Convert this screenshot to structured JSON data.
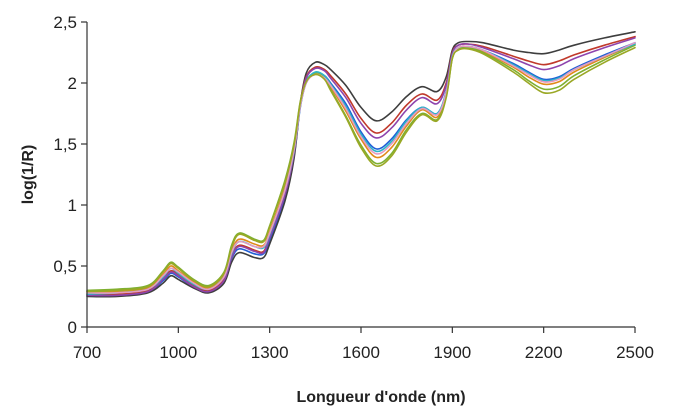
{
  "chart_data": {
    "type": "line",
    "title": "",
    "xlabel": "Longueur d'onde (nm)",
    "ylabel": "log(1/R)",
    "xlim": [
      700,
      2500
    ],
    "ylim": [
      0,
      2.5
    ],
    "x_ticks": [
      700,
      1000,
      1300,
      1600,
      1900,
      2200,
      2500
    ],
    "x_tick_labels": [
      "700",
      "1000",
      "1300",
      "1600",
      "1900",
      "2200",
      "2500"
    ],
    "y_ticks": [
      0,
      0.5,
      1,
      1.5,
      2,
      2.5
    ],
    "y_tick_labels": [
      "0",
      "0,5",
      "1",
      "1,5",
      "2",
      "2,5"
    ],
    "grid": false,
    "legend": "none",
    "x": [
      700,
      800,
      900,
      950,
      975,
      1000,
      1050,
      1100,
      1150,
      1175,
      1200,
      1250,
      1280,
      1300,
      1350,
      1380,
      1400,
      1420,
      1450,
      1480,
      1500,
      1550,
      1600,
      1650,
      1700,
      1750,
      1800,
      1850,
      1880,
      1900,
      1920,
      1950,
      2000,
      2100,
      2150,
      2200,
      2250,
      2300,
      2400,
      2500
    ],
    "series": [
      {
        "color": "#1f5fd6",
        "values": [
          0.26,
          0.26,
          0.29,
          0.38,
          0.44,
          0.41,
          0.33,
          0.29,
          0.38,
          0.56,
          0.64,
          0.6,
          0.6,
          0.71,
          1.06,
          1.4,
          1.79,
          2.0,
          2.08,
          2.06,
          2.0,
          1.83,
          1.6,
          1.46,
          1.54,
          1.7,
          1.8,
          1.75,
          1.93,
          2.21,
          2.29,
          2.3,
          2.27,
          2.16,
          2.09,
          2.03,
          2.05,
          2.12,
          2.23,
          2.33
        ]
      },
      {
        "color": "#3e3e3e",
        "values": [
          0.25,
          0.25,
          0.28,
          0.36,
          0.42,
          0.39,
          0.32,
          0.28,
          0.36,
          0.53,
          0.61,
          0.57,
          0.57,
          0.68,
          1.03,
          1.38,
          1.82,
          2.08,
          2.17,
          2.15,
          2.11,
          1.98,
          1.8,
          1.69,
          1.76,
          1.89,
          1.97,
          1.93,
          2.05,
          2.27,
          2.33,
          2.34,
          2.33,
          2.27,
          2.25,
          2.24,
          2.27,
          2.31,
          2.37,
          2.42
        ]
      },
      {
        "color": "#e08a1a",
        "values": [
          0.29,
          0.29,
          0.32,
          0.43,
          0.5,
          0.46,
          0.37,
          0.32,
          0.42,
          0.62,
          0.72,
          0.68,
          0.67,
          0.78,
          1.14,
          1.46,
          1.82,
          2.01,
          2.08,
          2.05,
          1.97,
          1.77,
          1.54,
          1.39,
          1.47,
          1.65,
          1.78,
          1.72,
          1.91,
          2.21,
          2.28,
          2.29,
          2.26,
          2.13,
          2.05,
          1.99,
          2.01,
          2.09,
          2.21,
          2.32
        ]
      },
      {
        "color": "#7fb030",
        "values": [
          0.3,
          0.31,
          0.34,
          0.46,
          0.53,
          0.49,
          0.39,
          0.34,
          0.45,
          0.67,
          0.77,
          0.72,
          0.71,
          0.83,
          1.2,
          1.51,
          1.84,
          2.02,
          2.08,
          2.04,
          1.95,
          1.73,
          1.49,
          1.34,
          1.42,
          1.62,
          1.75,
          1.7,
          1.89,
          2.2,
          2.28,
          2.29,
          2.25,
          2.11,
          2.02,
          1.95,
          1.97,
          2.06,
          2.19,
          2.31
        ]
      },
      {
        "color": "#c0392b",
        "values": [
          0.27,
          0.27,
          0.3,
          0.4,
          0.46,
          0.43,
          0.34,
          0.3,
          0.39,
          0.58,
          0.67,
          0.63,
          0.62,
          0.74,
          1.09,
          1.43,
          1.82,
          2.05,
          2.13,
          2.11,
          2.06,
          1.91,
          1.71,
          1.59,
          1.67,
          1.82,
          1.91,
          1.86,
          2.0,
          2.25,
          2.31,
          2.32,
          2.3,
          2.22,
          2.18,
          2.15,
          2.18,
          2.23,
          2.31,
          2.38
        ]
      },
      {
        "color": "#8e44ad",
        "values": [
          0.26,
          0.26,
          0.29,
          0.39,
          0.45,
          0.42,
          0.33,
          0.29,
          0.38,
          0.57,
          0.66,
          0.62,
          0.61,
          0.73,
          1.08,
          1.42,
          1.81,
          2.04,
          2.12,
          2.1,
          2.04,
          1.88,
          1.67,
          1.55,
          1.63,
          1.78,
          1.88,
          1.83,
          1.98,
          2.24,
          2.31,
          2.32,
          2.29,
          2.2,
          2.15,
          2.11,
          2.14,
          2.2,
          2.29,
          2.37
        ]
      },
      {
        "color": "#2bb5c9",
        "values": [
          0.27,
          0.28,
          0.31,
          0.41,
          0.48,
          0.44,
          0.35,
          0.31,
          0.41,
          0.6,
          0.7,
          0.66,
          0.65,
          0.76,
          1.12,
          1.44,
          1.8,
          2.01,
          2.09,
          2.06,
          1.99,
          1.81,
          1.58,
          1.44,
          1.52,
          1.69,
          1.8,
          1.75,
          1.93,
          2.22,
          2.29,
          2.3,
          2.27,
          2.15,
          2.08,
          2.02,
          2.04,
          2.11,
          2.22,
          2.32
        ]
      },
      {
        "color": "#e59ac2",
        "values": [
          0.28,
          0.28,
          0.31,
          0.42,
          0.48,
          0.45,
          0.36,
          0.31,
          0.41,
          0.61,
          0.7,
          0.66,
          0.66,
          0.77,
          1.12,
          1.45,
          1.8,
          2.0,
          2.07,
          2.04,
          1.98,
          1.79,
          1.56,
          1.42,
          1.5,
          1.67,
          1.79,
          1.74,
          1.92,
          2.21,
          2.29,
          2.3,
          2.27,
          2.14,
          2.07,
          2.01,
          2.03,
          2.11,
          2.22,
          2.33
        ]
      },
      {
        "color": "#9aa825",
        "values": [
          0.29,
          0.3,
          0.33,
          0.45,
          0.52,
          0.48,
          0.38,
          0.33,
          0.44,
          0.65,
          0.76,
          0.71,
          0.7,
          0.82,
          1.18,
          1.49,
          1.83,
          2.01,
          2.07,
          2.03,
          1.94,
          1.72,
          1.47,
          1.32,
          1.4,
          1.6,
          1.74,
          1.69,
          1.88,
          2.2,
          2.27,
          2.28,
          2.24,
          2.09,
          2.0,
          1.92,
          1.94,
          2.03,
          2.17,
          2.29
        ]
      }
    ]
  }
}
